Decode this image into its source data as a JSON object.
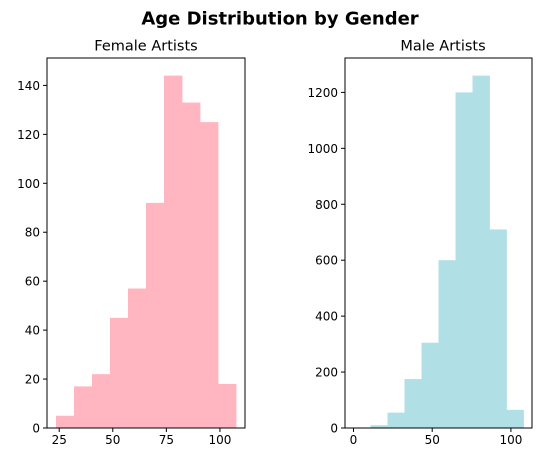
{
  "figure": {
    "suptitle": "Age Distribution by Gender"
  },
  "chart_data": [
    {
      "type": "bar",
      "histogram": true,
      "title": "Female Artists",
      "xlabel": "",
      "ylabel": "",
      "color": "#ffb6c1",
      "bins": [
        {
          "x0": 23.5,
          "x1": 31.9,
          "value": 5
        },
        {
          "x0": 31.9,
          "x1": 40.3,
          "value": 17
        },
        {
          "x0": 40.3,
          "x1": 48.7,
          "value": 22
        },
        {
          "x0": 48.7,
          "x1": 57.1,
          "value": 45
        },
        {
          "x0": 57.1,
          "x1": 65.5,
          "value": 57
        },
        {
          "x0": 65.5,
          "x1": 73.9,
          "value": 92
        },
        {
          "x0": 73.9,
          "x1": 82.3,
          "value": 144
        },
        {
          "x0": 82.3,
          "x1": 90.7,
          "value": 133
        },
        {
          "x0": 90.7,
          "x1": 99.1,
          "value": 125
        },
        {
          "x0": 99.1,
          "x1": 107.5,
          "value": 18
        }
      ],
      "xlim": [
        19.3,
        111.7
      ],
      "ylim": [
        0,
        151.2
      ],
      "xticks": [
        25,
        50,
        75,
        100
      ],
      "yticks": [
        0,
        20,
        40,
        60,
        80,
        100,
        120,
        140
      ],
      "grid": false
    },
    {
      "type": "bar",
      "histogram": true,
      "title": "Male Artists",
      "xlabel": "",
      "ylabel": "",
      "color": "#b0e0e6",
      "bins": [
        {
          "x0": 0,
          "x1": 10.8,
          "value": 0
        },
        {
          "x0": 10.8,
          "x1": 21.6,
          "value": 10
        },
        {
          "x0": 21.6,
          "x1": 32.4,
          "value": 55
        },
        {
          "x0": 32.4,
          "x1": 43.2,
          "value": 175
        },
        {
          "x0": 43.2,
          "x1": 54.0,
          "value": 305
        },
        {
          "x0": 54.0,
          "x1": 64.8,
          "value": 600
        },
        {
          "x0": 64.8,
          "x1": 75.6,
          "value": 1200
        },
        {
          "x0": 75.6,
          "x1": 86.4,
          "value": 1260
        },
        {
          "x0": 86.4,
          "x1": 97.2,
          "value": 710
        },
        {
          "x0": 97.2,
          "x1": 108.0,
          "value": 65
        }
      ],
      "xlim": [
        -5.4,
        113.4
      ],
      "ylim": [
        0,
        1323
      ],
      "xticks": [
        0,
        50,
        100
      ],
      "yticks": [
        0,
        200,
        400,
        600,
        800,
        1000,
        1200
      ],
      "grid": false
    }
  ]
}
